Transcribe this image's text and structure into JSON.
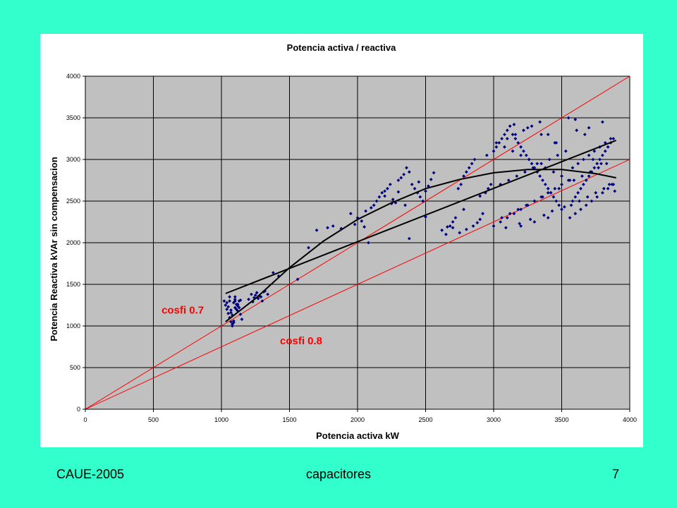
{
  "slide": {
    "background": "#33FFCC",
    "footer_left": "CAUE-2005",
    "footer_center": "capacitores",
    "footer_right": "7"
  },
  "chart_data": {
    "type": "scatter",
    "title": "Potencia activa / reactiva",
    "xlabel": "Potencia activa kW",
    "ylabel": "Potencia Reactiva kVAr sin compensacion",
    "xlim": [
      0,
      4000
    ],
    "ylim": [
      0,
      4000
    ],
    "x_ticks": [
      0,
      500,
      1000,
      1500,
      2000,
      2500,
      3000,
      3500,
      4000
    ],
    "y_ticks": [
      0,
      500,
      1000,
      1500,
      2000,
      2500,
      3000,
      3500,
      4000
    ],
    "grid": true,
    "plot_background": "#C0C0C0",
    "marker_color": "#000080",
    "trend_color": "#000000",
    "reference_color": "#FF0000",
    "annotations": [
      {
        "text": "cosfi 0.7",
        "x": 560,
        "y": 1150
      },
      {
        "text": "cosfi 0.8",
        "x": 1430,
        "y": 780
      }
    ],
    "reference_lines": [
      {
        "label": "cosfi 0.7",
        "points": [
          [
            0,
            0
          ],
          [
            4000,
            4000
          ]
        ]
      },
      {
        "label": "cosfi 0.8",
        "points": [
          [
            0,
            0
          ],
          [
            4000,
            3000
          ]
        ]
      }
    ],
    "trend_lines": [
      {
        "type": "linear",
        "points": [
          [
            1030,
            1390
          ],
          [
            3900,
            3230
          ]
        ]
      },
      {
        "type": "polynomial",
        "points": [
          [
            1030,
            1050
          ],
          [
            1250,
            1330
          ],
          [
            1500,
            1700
          ],
          [
            1750,
            2020
          ],
          [
            2000,
            2280
          ],
          [
            2250,
            2480
          ],
          [
            2500,
            2650
          ],
          [
            2750,
            2760
          ],
          [
            3000,
            2840
          ],
          [
            3250,
            2880
          ],
          [
            3500,
            2880
          ],
          [
            3750,
            2830
          ],
          [
            3900,
            2780
          ]
        ]
      }
    ],
    "series": [
      {
        "x": [
          1020,
          1030,
          1040,
          1050,
          1060,
          1070,
          1080,
          1090,
          1100,
          1110,
          1120,
          1130,
          1140,
          1150,
          1060,
          1080,
          1100,
          1120,
          1040,
          1070,
          1090,
          1110,
          1130,
          1050,
          1080,
          1100,
          1060,
          1090,
          1120,
          1140,
          1070,
          1100,
          1200,
          1220,
          1240,
          1260,
          1280,
          1300,
          1320,
          1340,
          1230,
          1270,
          1310,
          1250,
          1290,
          1380,
          1420,
          1560,
          1640,
          1700,
          1780,
          1820,
          1880,
          1950,
          1980,
          2000,
          2030,
          2060,
          2080,
          2100,
          2120,
          2140,
          2160,
          2180,
          2200,
          2220,
          2240,
          2260,
          2280,
          2300,
          2320,
          2340,
          2360,
          2380,
          2400,
          2420,
          2440,
          2460,
          2480,
          2500,
          2520,
          2540,
          2560,
          2380,
          2200,
          2300,
          2450,
          2350,
          2500,
          2250,
          2050,
          2620,
          2650,
          2680,
          2700,
          2720,
          2740,
          2760,
          2780,
          2800,
          2820,
          2840,
          2860,
          2880,
          2900,
          2920,
          2940,
          2960,
          2980,
          2700,
          2750,
          2800,
          2850,
          2900,
          2950,
          2660,
          2780,
          3000,
          3020,
          3040,
          3060,
          3080,
          3100,
          3120,
          3140,
          3160,
          3180,
          3200,
          3220,
          3240,
          3260,
          3280,
          3300,
          3320,
          3340,
          3360,
          3380,
          3400,
          3420,
          3440,
          3460,
          3480,
          3500,
          3000,
          3050,
          3100,
          3150,
          3200,
          3250,
          3300,
          3350,
          3400,
          3450,
          3500,
          3550,
          3020,
          3080,
          3140,
          3200,
          3260,
          3320,
          3380,
          3440,
          3500,
          3560,
          3100,
          3160,
          3220,
          3280,
          3340,
          3400,
          3460,
          3060,
          3120,
          3180,
          3240,
          3300,
          3360,
          3420,
          3480,
          3150,
          3250,
          3350,
          3450,
          3200,
          3300,
          3400,
          3050,
          3110,
          3170,
          3230,
          3290,
          3350,
          3410,
          3470,
          3530,
          3090,
          3190,
          3270,
          3370,
          3430,
          3520,
          3580,
          3600,
          3620,
          3640,
          3660,
          3680,
          3700,
          3720,
          3740,
          3760,
          3780,
          3800,
          3820,
          3840,
          3860,
          3880,
          3560,
          3600,
          3640,
          3680,
          3720,
          3760,
          3800,
          3840,
          3880,
          3580,
          3620,
          3660,
          3700,
          3740,
          3780,
          3820,
          3860,
          3570,
          3630,
          3690,
          3750,
          3810,
          3870,
          3590,
          3650,
          3710,
          3770,
          3830,
          3610,
          3670,
          3730,
          3790,
          3850,
          3890,
          3550,
          3700,
          3800,
          3600
        ],
        "y": [
          1300,
          1250,
          1200,
          1150,
          1100,
          1050,
          1000,
          1280,
          1320,
          1260,
          1180,
          1220,
          1140,
          1080,
          1350,
          1020,
          1300,
          1240,
          1280,
          1160,
          1060,
          1200,
          1300,
          1230,
          1130,
          1350,
          1300,
          1040,
          1260,
          1310,
          1190,
          1220,
          1320,
          1380,
          1340,
          1400,
          1360,
          1300,
          1420,
          1380,
          1290,
          1330,
          1410,
          1370,
          1350,
          1640,
          1600,
          1560,
          1940,
          2150,
          2180,
          2200,
          2170,
          2350,
          2220,
          2300,
          2260,
          2380,
          2000,
          2420,
          2450,
          2500,
          2550,
          2600,
          2620,
          2650,
          2700,
          2520,
          2480,
          2750,
          2780,
          2820,
          2900,
          2850,
          2700,
          2650,
          2600,
          2550,
          2500,
          2620,
          2680,
          2760,
          2840,
          2050,
          2560,
          2610,
          2730,
          2450,
          2310,
          2470,
          2190,
          2150,
          2100,
          2200,
          2250,
          2300,
          2650,
          2700,
          2800,
          2850,
          2900,
          2950,
          3000,
          2240,
          2280,
          2350,
          2600,
          2650,
          2700,
          2180,
          2120,
          2160,
          2200,
          2560,
          3050,
          2190,
          2400,
          3100,
          3150,
          3200,
          3250,
          3300,
          3350,
          3400,
          3300,
          3250,
          3200,
          3150,
          3100,
          3050,
          3000,
          2950,
          2900,
          2850,
          2800,
          2750,
          2700,
          2650,
          2600,
          2550,
          2500,
          2450,
          2400,
          2200,
          2250,
          2300,
          2350,
          2400,
          2450,
          2500,
          2550,
          2600,
          2650,
          2700,
          2750,
          3200,
          3150,
          3100,
          3050,
          3000,
          2950,
          2900,
          2850,
          2800,
          2750,
          3250,
          3300,
          3350,
          3400,
          3450,
          3300,
          3200,
          2300,
          2350,
          2400,
          2450,
          2500,
          2550,
          2600,
          2650,
          3420,
          3380,
          3300,
          3200,
          2200,
          2250,
          2300,
          2700,
          2750,
          2800,
          2850,
          2900,
          2950,
          3000,
          3050,
          3100,
          2180,
          2230,
          2280,
          2330,
          2380,
          2430,
          2500,
          2550,
          2600,
          2650,
          2700,
          2750,
          2800,
          2850,
          2900,
          2950,
          3000,
          3050,
          3100,
          3150,
          3200,
          3250,
          2300,
          2350,
          2400,
          2450,
          2500,
          2550,
          2600,
          2650,
          2700,
          2900,
          2950,
          3000,
          3050,
          3100,
          3150,
          3200,
          3250,
          2450,
          2500,
          2550,
          2600,
          2650,
          2700,
          2750,
          2800,
          2850,
          2900,
          2950,
          3350,
          3300,
          3000,
          2950,
          2700,
          2620,
          3500,
          3380,
          3450,
          3480
        ]
      }
    ]
  }
}
